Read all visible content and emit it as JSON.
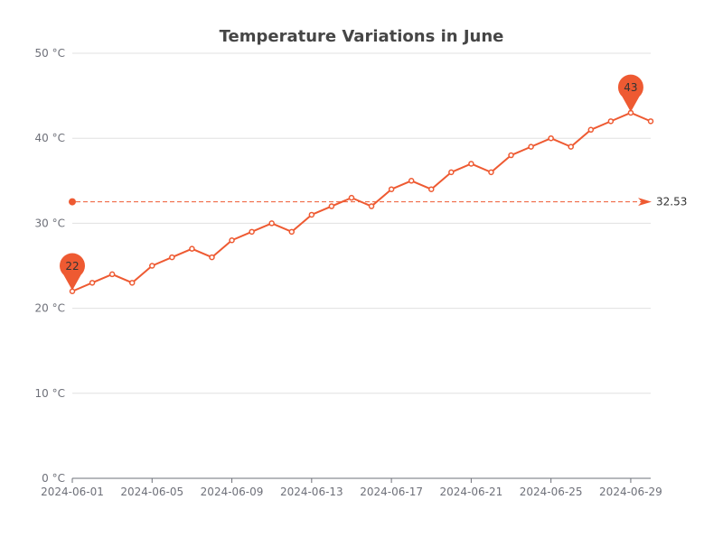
{
  "chart_data": {
    "type": "line",
    "title": "Temperature Variations in June",
    "xlabel": "",
    "ylabel": "",
    "y_unit_suffix": " °C",
    "ylim": [
      0,
      50
    ],
    "y_ticks": [
      0,
      10,
      20,
      30,
      40,
      50
    ],
    "y_tick_labels": [
      "0 °C",
      "10 °C",
      "20 °C",
      "30 °C",
      "40 °C",
      "50 °C"
    ],
    "x_tick_labels": [
      "2024-06-01",
      "2024-06-05",
      "2024-06-09",
      "2024-06-13",
      "2024-06-17",
      "2024-06-21",
      "2024-06-25",
      "2024-06-29"
    ],
    "x": [
      "2024-06-01",
      "2024-06-02",
      "2024-06-03",
      "2024-06-04",
      "2024-06-05",
      "2024-06-06",
      "2024-06-07",
      "2024-06-08",
      "2024-06-09",
      "2024-06-10",
      "2024-06-11",
      "2024-06-12",
      "2024-06-13",
      "2024-06-14",
      "2024-06-15",
      "2024-06-16",
      "2024-06-17",
      "2024-06-18",
      "2024-06-19",
      "2024-06-20",
      "2024-06-21",
      "2024-06-22",
      "2024-06-23",
      "2024-06-24",
      "2024-06-25",
      "2024-06-26",
      "2024-06-27",
      "2024-06-28",
      "2024-06-29",
      "2024-06-30"
    ],
    "series": [
      {
        "name": "",
        "color": "#ee5a32",
        "values": [
          22,
          23,
          24,
          23,
          25,
          26,
          27,
          26,
          28,
          29,
          30,
          29,
          31,
          32,
          33,
          32,
          34,
          35,
          34,
          36,
          37,
          36,
          38,
          39,
          40,
          39,
          41,
          42,
          43,
          42
        ]
      }
    ],
    "mark_points": [
      {
        "label": "22",
        "date": "2024-06-01",
        "value": 22
      },
      {
        "label": "43",
        "date": "2024-06-29",
        "value": 43
      }
    ],
    "mark_line": {
      "label": "32.53",
      "value": 32.53
    },
    "grid": true,
    "legend": "none"
  }
}
